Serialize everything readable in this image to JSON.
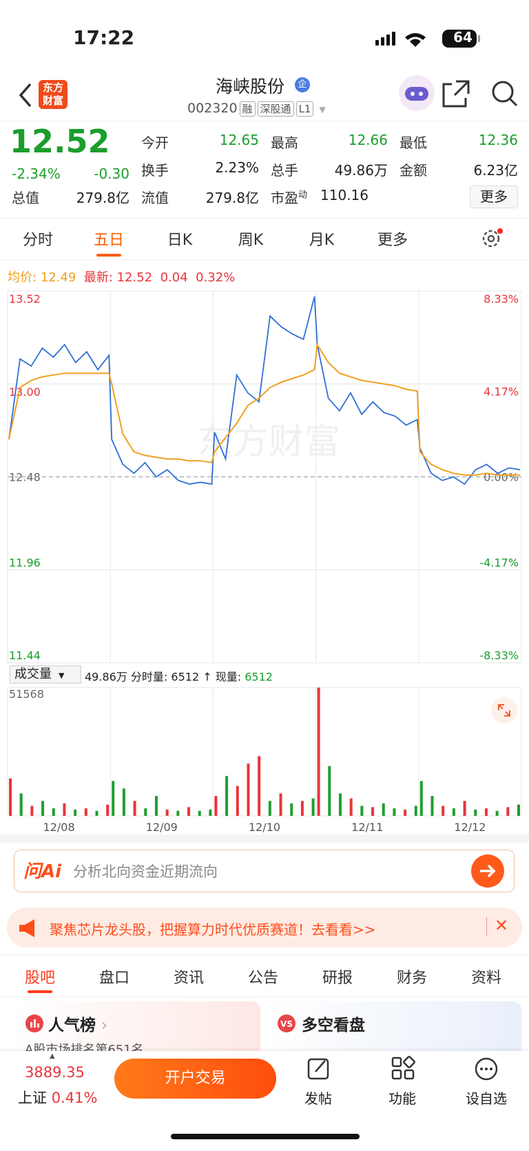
{
  "status_bar": {
    "time": "17:22",
    "battery": "64"
  },
  "header": {
    "logo": [
      "东方",
      "财富"
    ],
    "name": "海峡股份",
    "badge": "企",
    "code": "002320",
    "tags": [
      "融",
      "深股通",
      "L1"
    ]
  },
  "quote": {
    "price": "12.52",
    "change_pct": "-2.34%",
    "change": "-0.30",
    "rows": [
      [
        {
          "label": "今开",
          "value": "12.65"
        },
        {
          "label": "最高",
          "value": "12.66"
        },
        {
          "label": "最低",
          "value": "12.36"
        }
      ],
      [
        {
          "label": "换手",
          "value": "2.23%"
        },
        {
          "label": "总手",
          "value": "49.86万"
        },
        {
          "label": "金额",
          "value": "6.23亿"
        }
      ],
      [
        {
          "label": "总值",
          "value": "279.8亿"
        },
        {
          "label": "流值",
          "value": "279.8亿"
        },
        {
          "label": "市盈",
          "sup": "动",
          "value": "110.16"
        }
      ]
    ],
    "more": "更多"
  },
  "tabs": {
    "items": [
      "分时",
      "五日",
      "日K",
      "周K",
      "月K",
      "更多"
    ],
    "active": 1
  },
  "chart_info": {
    "avg_label": "均价:",
    "avg": "12.49",
    "last_label": "最新:",
    "last": "12.52",
    "change": "0.04",
    "change_pct": "0.32%"
  },
  "watermark": "东方财富",
  "chart_data": [
    {
      "type": "line",
      "ylim": [
        11.44,
        13.52
      ],
      "yticks": [
        13.52,
        {
          "value": 13,
          "label": "13.00"
        },
        12.48,
        11.96,
        11.44
      ],
      "y2lim": [
        -8.33,
        8.33
      ],
      "y2ticks": [
        {
          "value": 8.33,
          "label": "8.33%"
        },
        {
          "value": 4.17,
          "label": "4.17%"
        },
        {
          "value": 0,
          "label": "0.00%"
        },
        {
          "value": -4.17,
          "label": "-4.17%"
        },
        {
          "value": -8.33,
          "label": "-8.33%"
        }
      ],
      "baseline": 12.48,
      "grid": true,
      "series": [
        {
          "color": "#2f6fd6",
          "values": [
            [
              12.69,
              13.14,
              13.1,
              13.2,
              13.15,
              13.22,
              13.12,
              13.18,
              13.08,
              13.16
            ],
            [
              12.69,
              12.55,
              12.5,
              12.56,
              12.48,
              12.52,
              12.46,
              12.44,
              12.45,
              12.44
            ],
            [
              12.73,
              12.58,
              13.05,
              12.95,
              12.9,
              13.38,
              13.32,
              13.28,
              13.25,
              13.49
            ],
            [
              13.22,
              12.92,
              12.85,
              12.95,
              12.83,
              12.9,
              12.84,
              12.82,
              12.77,
              12.8
            ],
            [
              12.64,
              12.5,
              12.46,
              12.48,
              12.44,
              12.52,
              12.55,
              12.5,
              12.53,
              12.52
            ]
          ]
        },
        {
          "color": "#f0a020",
          "values": [
            [
              12.69,
              12.98,
              13.02,
              13.04,
              13.05,
              13.06,
              13.06,
              13.06,
              13.06,
              13.06
            ],
            [
              13.0,
              12.72,
              12.62,
              12.6,
              12.59,
              12.58,
              12.58,
              12.57,
              12.57,
              12.56
            ],
            [
              12.62,
              12.7,
              12.78,
              12.88,
              12.92,
              12.98,
              13.01,
              13.03,
              13.05,
              13.08
            ],
            [
              13.22,
              13.12,
              13.06,
              13.04,
              13.02,
              13.01,
              13.0,
              12.99,
              12.97,
              12.96
            ],
            [
              12.62,
              12.55,
              12.52,
              12.5,
              12.49,
              12.49,
              12.5,
              12.49,
              12.49,
              12.49
            ]
          ]
        }
      ]
    },
    {
      "type": "bar",
      "categories": [
        "12/08",
        "12/09",
        "12/10",
        "12/11",
        "12/12"
      ],
      "ylim": [
        0,
        51568
      ],
      "yticks": [
        51568
      ],
      "values": [
        [
          15000,
          9000,
          4000,
          6000,
          3000,
          5000,
          2500,
          3000,
          2000,
          4500
        ],
        [
          14000,
          11000,
          6000,
          3000,
          8000,
          2500,
          2000,
          3500,
          2000,
          2500
        ],
        [
          8000,
          16000,
          12000,
          21000,
          24000,
          6000,
          9000,
          5000,
          6000,
          7000
        ],
        [
          51568,
          20000,
          9000,
          7000,
          4000,
          3500,
          5000,
          3000,
          2500,
          4000
        ],
        [
          14000,
          8000,
          4000,
          3000,
          6000,
          2500,
          3000,
          2000,
          3500,
          4500
        ]
      ],
      "colors": [
        [
          "#e8343a",
          "#1e9e2e",
          "#e8343a",
          "#1e9e2e",
          "#1e9e2e",
          "#e8343a",
          "#1e9e2e",
          "#e8343a",
          "#1e9e2e",
          "#e8343a"
        ],
        [
          "#1e9e2e",
          "#1e9e2e",
          "#e8343a",
          "#1e9e2e",
          "#1e9e2e",
          "#e8343a",
          "#1e9e2e",
          "#e8343a",
          "#1e9e2e",
          "#1e9e2e"
        ],
        [
          "#e8343a",
          "#1e9e2e",
          "#e8343a",
          "#e8343a",
          "#e8343a",
          "#1e9e2e",
          "#e8343a",
          "#1e9e2e",
          "#e8343a",
          "#1e9e2e"
        ],
        [
          "#e8343a",
          "#1e9e2e",
          "#1e9e2e",
          "#e8343a",
          "#1e9e2e",
          "#e8343a",
          "#1e9e2e",
          "#1e9e2e",
          "#e8343a",
          "#1e9e2e"
        ],
        [
          "#1e9e2e",
          "#1e9e2e",
          "#e8343a",
          "#1e9e2e",
          "#e8343a",
          "#1e9e2e",
          "#e8343a",
          "#1e9e2e",
          "#e8343a",
          "#1e9e2e"
        ]
      ]
    }
  ],
  "volume_info": {
    "selector": "成交量",
    "total": "49.86万",
    "tick_label": "分时量:",
    "tick": "6512",
    "arrow": "↑",
    "current_label": "现量:",
    "current": "6512"
  },
  "ai_bar": {
    "logo": "问Ai",
    "prompt": "分析北向资金近期流向"
  },
  "banner": {
    "text": "聚焦芯片龙头股，把握算力时代优质赛道！去看看>>"
  },
  "section_tabs": {
    "items": [
      "股吧",
      "盘口",
      "资讯",
      "公告",
      "研报",
      "财务",
      "资料"
    ],
    "active": 0
  },
  "cards": [
    {
      "title": "人气榜",
      "subtitle": "A股市场排名第651名"
    },
    {
      "title": "多空看盘"
    }
  ],
  "bottom_bar": {
    "index_value": "3889.35",
    "index_name": "上证",
    "index_change": "0.41%",
    "trade_button": "开户交易",
    "actions": [
      "发帖",
      "功能",
      "设自选"
    ]
  }
}
